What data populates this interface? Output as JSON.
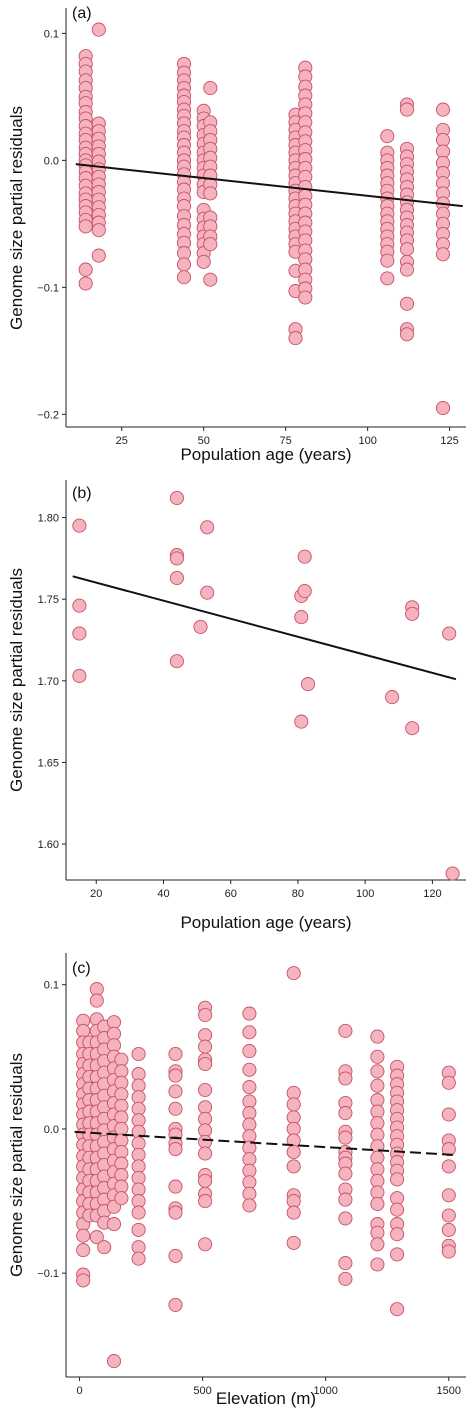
{
  "chart_data": [
    {
      "type": "scatter",
      "panel": "(a)",
      "xlabel": "Population age (years)",
      "ylabel": "Genome size partial residuals",
      "xlim": [
        8,
        130
      ],
      "ylim": [
        -0.21,
        0.12
      ],
      "xticks": [
        25,
        50,
        75,
        100,
        125
      ],
      "yticks": [
        -0.2,
        -0.1,
        0.0,
        0.1
      ],
      "ytick_labels": [
        "−0.2",
        "−0.1",
        "0.0",
        "0.1"
      ],
      "point_color": "#f5b3be",
      "point_stroke": "#c8506a",
      "line": {
        "style": "solid",
        "x": [
          11,
          129
        ],
        "y": [
          -0.003,
          -0.036
        ]
      },
      "columns": [
        {
          "x": 14,
          "y": [
            0.082,
            0.076,
            0.07,
            0.063,
            0.057,
            0.05,
            0.045,
            0.038,
            0.033,
            0.027,
            0.021,
            0.016,
            0.01,
            0.005,
            0.0,
            -0.004,
            -0.009,
            -0.014,
            -0.02,
            -0.026,
            -0.031,
            -0.036,
            -0.041,
            -0.047,
            -0.052,
            -0.086,
            -0.097
          ]
        },
        {
          "x": 18,
          "y": [
            0.103,
            0.029,
            0.023,
            0.017,
            0.011,
            0.005,
            -0.001,
            -0.007,
            -0.013,
            -0.019,
            -0.025,
            -0.031,
            -0.037,
            -0.043,
            -0.049,
            -0.055,
            -0.075
          ]
        },
        {
          "x": 44,
          "y": [
            0.076,
            0.069,
            0.063,
            0.057,
            0.051,
            0.046,
            0.04,
            0.035,
            0.029,
            0.023,
            0.018,
            0.012,
            0.006,
            0.0,
            -0.005,
            -0.011,
            -0.017,
            -0.023,
            -0.03,
            -0.036,
            -0.044,
            -0.051,
            -0.058,
            -0.065,
            -0.073,
            -0.082,
            -0.092
          ]
        },
        {
          "x": 50,
          "y": [
            0.039,
            0.033,
            0.027,
            0.02,
            0.013,
            0.006,
            0.0,
            -0.006,
            -0.012,
            -0.019,
            -0.025,
            -0.039,
            -0.046,
            -0.053,
            -0.06,
            -0.066,
            -0.073,
            -0.08
          ]
        },
        {
          "x": 52,
          "y": [
            0.057,
            0.03,
            0.023,
            0.016,
            0.009,
            0.002,
            -0.005,
            -0.012,
            -0.019,
            -0.026,
            -0.045,
            -0.052,
            -0.06,
            -0.066,
            -0.094
          ]
        },
        {
          "x": 78,
          "y": [
            0.036,
            0.03,
            0.024,
            0.018,
            0.012,
            0.006,
            0.0,
            -0.006,
            -0.012,
            -0.018,
            -0.024,
            -0.03,
            -0.036,
            -0.042,
            -0.048,
            -0.054,
            -0.06,
            -0.066,
            -0.072,
            -0.087,
            -0.103,
            -0.133,
            -0.14
          ]
        },
        {
          "x": 81,
          "y": [
            0.073,
            0.066,
            0.058,
            0.051,
            0.044,
            0.037,
            0.03,
            0.022,
            0.015,
            0.008,
            0.001,
            -0.006,
            -0.013,
            -0.021,
            -0.028,
            -0.035,
            -0.042,
            -0.049,
            -0.056,
            -0.063,
            -0.071,
            -0.078,
            -0.086,
            -0.094,
            -0.101,
            -0.108
          ]
        },
        {
          "x": 106,
          "y": [
            0.019,
            0.006,
            0.0,
            -0.006,
            -0.012,
            -0.018,
            -0.024,
            -0.03,
            -0.036,
            -0.042,
            -0.048,
            -0.054,
            -0.06,
            -0.066,
            -0.072,
            -0.079,
            -0.093
          ]
        },
        {
          "x": 112,
          "y": [
            0.044,
            0.04,
            0.009,
            0.003,
            -0.003,
            -0.009,
            -0.015,
            -0.021,
            -0.027,
            -0.033,
            -0.039,
            -0.045,
            -0.051,
            -0.057,
            -0.063,
            -0.07,
            -0.08,
            -0.086,
            -0.113,
            -0.133,
            -0.137
          ]
        },
        {
          "x": 123,
          "y": [
            0.04,
            0.024,
            0.016,
            0.007,
            -0.002,
            -0.01,
            -0.018,
            -0.026,
            -0.034,
            -0.042,
            -0.05,
            -0.058,
            -0.066,
            -0.074,
            -0.195
          ]
        }
      ]
    },
    {
      "type": "scatter",
      "panel": "(b)",
      "xlabel": "Population age (years)",
      "ylabel": "Genome size partial residuals",
      "xlim": [
        11,
        130
      ],
      "ylim": [
        1.578,
        1.823
      ],
      "xticks": [
        20,
        40,
        60,
        80,
        100,
        120
      ],
      "yticks": [
        1.6,
        1.65,
        1.7,
        1.75,
        1.8
      ],
      "ytick_labels": [
        "1.60",
        "1.65",
        "1.70",
        "1.75",
        "1.80"
      ],
      "point_color": "#f5b3be",
      "point_stroke": "#c8506a",
      "line": {
        "style": "solid",
        "x": [
          13,
          127
        ],
        "y": [
          1.764,
          1.701
        ]
      },
      "points": [
        [
          15,
          1.795
        ],
        [
          15,
          1.746
        ],
        [
          15,
          1.729
        ],
        [
          15,
          1.703
        ],
        [
          44,
          1.812
        ],
        [
          44,
          1.777
        ],
        [
          44,
          1.775
        ],
        [
          44,
          1.763
        ],
        [
          44,
          1.712
        ],
        [
          51,
          1.733
        ],
        [
          53,
          1.794
        ],
        [
          53,
          1.754
        ],
        [
          81,
          1.752
        ],
        [
          81,
          1.739
        ],
        [
          81,
          1.675
        ],
        [
          82,
          1.776
        ],
        [
          82,
          1.755
        ],
        [
          83,
          1.698
        ],
        [
          108,
          1.69
        ],
        [
          114,
          1.745
        ],
        [
          114,
          1.741
        ],
        [
          114,
          1.671
        ],
        [
          125,
          1.729
        ],
        [
          126,
          1.582
        ]
      ]
    },
    {
      "type": "scatter",
      "panel": "(c)",
      "xlabel": "Elevation (m)",
      "ylabel": "Genome size partial residuals",
      "xlim": [
        -55,
        1570
      ],
      "ylim": [
        -0.172,
        0.122
      ],
      "xticks": [
        0,
        500,
        1000,
        1500
      ],
      "yticks": [
        -0.1,
        0.0,
        0.1
      ],
      "ytick_labels": [
        "−0.1",
        "0.0",
        "0.1"
      ],
      "point_color": "#f5b3be",
      "point_stroke": "#c8506a",
      "line": {
        "style": "dashed",
        "x": [
          -20,
          1520
        ],
        "y": [
          -0.002,
          -0.018
        ]
      },
      "columns": [
        {
          "x": 15,
          "y": [
            0.075,
            0.068,
            0.06,
            0.052,
            0.045,
            0.038,
            0.031,
            0.024,
            0.017,
            0.01,
            0.003,
            -0.004,
            -0.011,
            -0.019,
            -0.026,
            -0.034,
            -0.042,
            -0.05,
            -0.058,
            -0.066,
            -0.074,
            -0.084,
            -0.101,
            -0.105
          ]
        },
        {
          "x": 40,
          "y": [
            0.06,
            0.052,
            0.044,
            0.036,
            0.028,
            0.02,
            0.012,
            0.004,
            -0.004,
            -0.012,
            -0.02,
            -0.028,
            -0.036,
            -0.044,
            -0.052,
            -0.06
          ]
        },
        {
          "x": 70,
          "y": [
            0.097,
            0.089,
            0.076,
            0.068,
            0.06,
            0.052,
            0.044,
            0.036,
            0.028,
            0.02,
            0.012,
            0.004,
            -0.004,
            -0.012,
            -0.02,
            -0.028,
            -0.036,
            -0.044,
            -0.052,
            -0.06,
            -0.075
          ]
        },
        {
          "x": 100,
          "y": [
            0.071,
            0.063,
            0.055,
            0.047,
            0.039,
            0.031,
            0.023,
            0.015,
            0.007,
            -0.001,
            -0.009,
            -0.017,
            -0.025,
            -0.033,
            -0.041,
            -0.049,
            -0.057,
            -0.065,
            -0.082
          ]
        },
        {
          "x": 140,
          "y": [
            0.074,
            0.066,
            0.058,
            0.05,
            0.042,
            0.034,
            0.026,
            0.018,
            0.01,
            0.002,
            -0.006,
            -0.014,
            -0.022,
            -0.03,
            -0.038,
            -0.046,
            -0.054,
            -0.066,
            -0.161
          ]
        },
        {
          "x": 170,
          "y": [
            0.048,
            0.04,
            0.032,
            0.024,
            0.016,
            0.008,
            0.0,
            -0.008,
            -0.016,
            -0.024,
            -0.032,
            -0.04,
            -0.048
          ]
        },
        {
          "x": 240,
          "y": [
            0.052,
            0.038,
            0.03,
            0.022,
            0.014,
            0.006,
            -0.002,
            -0.01,
            -0.018,
            -0.026,
            -0.034,
            -0.042,
            -0.05,
            -0.058,
            -0.07,
            -0.082,
            -0.09
          ]
        },
        {
          "x": 390,
          "y": [
            0.052,
            0.04,
            0.037,
            0.026,
            0.014,
            0.0,
            -0.004,
            -0.01,
            -0.014,
            -0.04,
            -0.055,
            -0.058,
            -0.088,
            -0.122
          ]
        },
        {
          "x": 510,
          "y": [
            0.084,
            0.079,
            0.065,
            0.057,
            0.048,
            0.045,
            0.027,
            0.015,
            0.007,
            -0.001,
            -0.009,
            -0.017,
            -0.032,
            -0.036,
            -0.045,
            -0.05,
            -0.08
          ]
        },
        {
          "x": 690,
          "y": [
            0.08,
            0.067,
            0.054,
            0.041,
            0.029,
            0.019,
            0.011,
            0.003,
            -0.005,
            -0.013,
            -0.021,
            -0.029,
            -0.037,
            -0.045,
            -0.053
          ]
        },
        {
          "x": 870,
          "y": [
            0.108,
            0.025,
            0.017,
            0.008,
            0.0,
            -0.008,
            -0.016,
            -0.026,
            -0.046,
            -0.05,
            -0.058,
            -0.079
          ]
        },
        {
          "x": 1080,
          "y": [
            0.068,
            0.04,
            0.035,
            0.018,
            0.011,
            -0.002,
            -0.006,
            -0.016,
            -0.02,
            -0.024,
            -0.031,
            -0.042,
            -0.049,
            -0.062,
            -0.093,
            -0.104
          ]
        },
        {
          "x": 1210,
          "y": [
            0.064,
            0.05,
            0.04,
            0.03,
            0.02,
            0.012,
            0.004,
            -0.004,
            -0.012,
            -0.02,
            -0.028,
            -0.036,
            -0.044,
            -0.052,
            -0.066,
            -0.072,
            -0.08,
            -0.094
          ]
        },
        {
          "x": 1290,
          "y": [
            0.043,
            0.037,
            0.031,
            0.025,
            0.019,
            0.013,
            0.007,
            0.001,
            -0.005,
            -0.011,
            -0.017,
            -0.023,
            -0.029,
            -0.035,
            -0.048,
            -0.056,
            -0.066,
            -0.073,
            -0.087,
            -0.125
          ]
        },
        {
          "x": 1500,
          "y": [
            0.039,
            0.032,
            0.01,
            -0.008,
            -0.014,
            -0.026,
            -0.046,
            -0.06,
            -0.07,
            -0.081,
            -0.085
          ]
        }
      ]
    }
  ]
}
